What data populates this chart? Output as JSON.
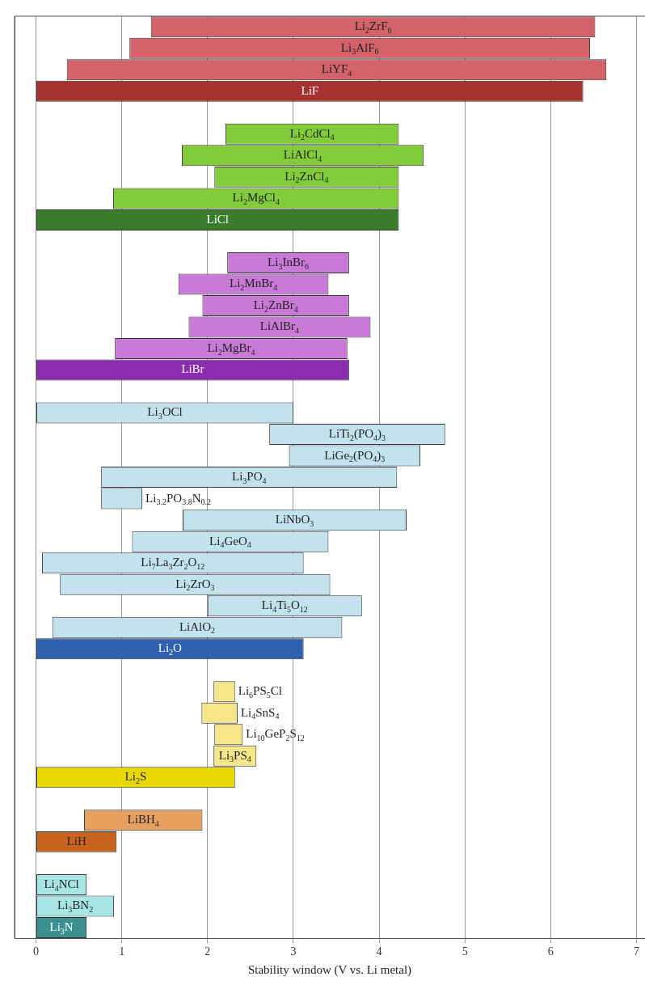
{
  "chart_data": {
    "type": "bar",
    "orientation": "horizontal",
    "xlabel": "Stability window (V vs. Li metal)",
    "categories": [
      "Li$_{2}$ZrF$_{6}$",
      "Li$_{3}$AlF$_{6}$",
      "LiYF$_{4}$",
      "LiF",
      null,
      "Li$_{2}$CdCl$_{4}$",
      "LiAlCl$_{4}$",
      "Li$_{2}$ZnCl$_{4}$",
      "Li$_{2}$MgCl$_{4}$",
      "LiCl",
      null,
      "Li$_{3}$InBr$_{6}$",
      "Li$_{2}$MnBr$_{4}$",
      "Li$_{2}$ZnBr$_{4}$",
      "LiAlBr$_{4}$",
      "Li$_{2}$MgBr$_{4}$",
      "LiBr",
      null,
      "Li$_{3}$OCl",
      "LiTi$_{2}$(PO$_{4}$)$_{3}$",
      "LiGe$_{2}$(PO$_{4}$)$_{3}$",
      "Li$_{3}$PO$_{4}$",
      "Li$_{3.2}$PO$_{3.8}$N$_{0.2}$",
      "LiNbO$_{3}$",
      "Li$_{4}$GeO$_{4}$",
      "Li$_{7}$La$_{3}$Zr$_{2}$O$_{12}$",
      "Li$_{2}$ZrO$_{3}$",
      "Li$_{4}$Ti$_{5}$O$_{12}$",
      "LiAlO$_{2}$",
      "Li$_{2}$O",
      null,
      "Li$_{6}$PS$_{5}$Cl",
      "Li$_{4}$SnS$_{4}$",
      "Li$_{10}$GeP$_{2}$S$_{12}$",
      "Li$_{3}$PS$_{4}$",
      "Li$_{2}$S",
      null,
      "LiBH$_{4}$",
      "LiH",
      null,
      "Li$_{4}$NCl",
      "Li$_{3}$BN$_{2}$",
      "Li$_{3}$N"
    ],
    "base": [
      1.34,
      1.09,
      0.36,
      0,
      null,
      2.21,
      1.7,
      2.08,
      0.9,
      0,
      null,
      2.23,
      1.66,
      1.94,
      1.78,
      0.92,
      0,
      null,
      0,
      2.72,
      2.95,
      0.76,
      0.76,
      1.71,
      1.12,
      0.07,
      0.28,
      2.0,
      0.19,
      0,
      null,
      2.07,
      1.93,
      2.08,
      2.07,
      0,
      null,
      0.56,
      0,
      null,
      0,
      0,
      0
    ],
    "values": [
      5.18,
      5.37,
      6.29,
      6.38,
      null,
      2.02,
      2.82,
      2.15,
      3.33,
      4.23,
      null,
      1.42,
      1.75,
      1.71,
      2.12,
      2.71,
      3.65,
      null,
      3.0,
      2.05,
      1.53,
      3.45,
      0.48,
      2.61,
      2.29,
      3.05,
      3.15,
      1.8,
      3.38,
      3.12,
      null,
      0.25,
      0.42,
      0.33,
      0.5,
      2.32,
      null,
      1.38,
      0.94,
      null,
      0.59,
      0.91,
      0.59
    ],
    "colors": [
      "#d4626a",
      "#d4626a",
      "#d4626a",
      "#a83232",
      null,
      "#82cc3c",
      "#82cc3c",
      "#82cc3c",
      "#82cc3c",
      "#3a7d2c",
      null,
      "#c97ad6",
      "#c97ad6",
      "#c97ad6",
      "#c97ad6",
      "#c97ad6",
      "#8a2bb0",
      null,
      "#c2e2ee",
      "#c2e2ee",
      "#c2e2ee",
      "#c2e2ee",
      "#c2e2ee",
      "#c2e2ee",
      "#c2e2ee",
      "#c2e2ee",
      "#c2e2ee",
      "#c2e2ee",
      "#c2e2ee",
      "#3060b0",
      null,
      "#f5e68a",
      "#f5e68a",
      "#f5e68a",
      "#f5e68a",
      "#e8d800",
      null,
      "#e8a060",
      "#c8641e",
      null,
      "#a8e6e6",
      "#a8e6e6",
      "#3a9090"
    ],
    "xlim": [
      -0.25,
      7.1
    ],
    "xticks": [
      0,
      1,
      2,
      3,
      4,
      5,
      6,
      7
    ],
    "grid": "x",
    "tick_labels": "x"
  }
}
